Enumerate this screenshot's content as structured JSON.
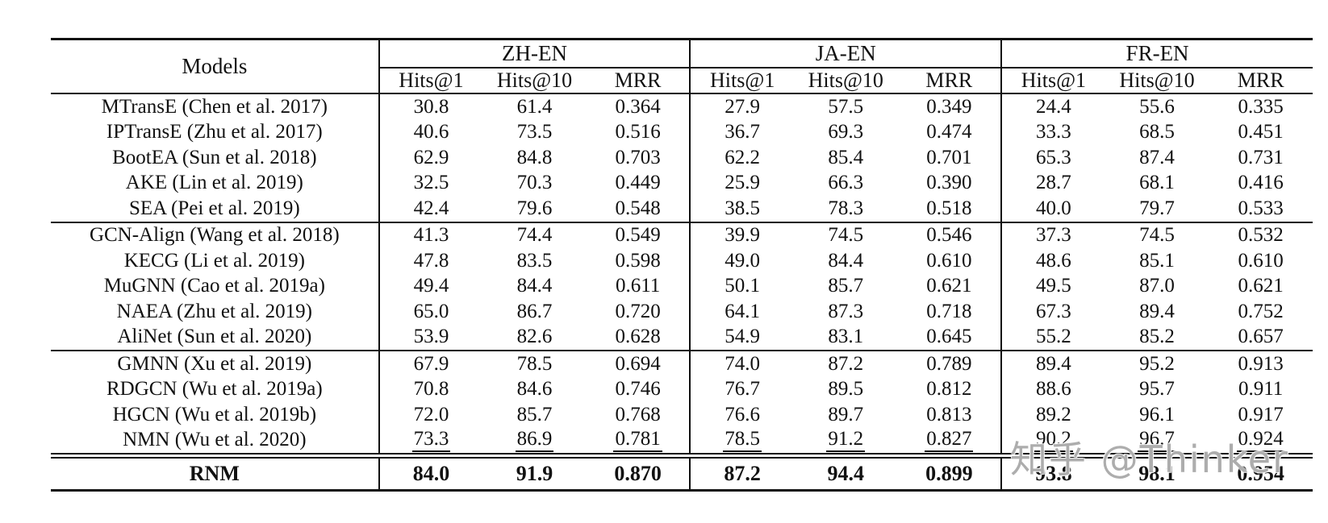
{
  "watermark": {
    "text": "知乎 @Thinker"
  },
  "table": {
    "models_header": "Models",
    "groups": [
      {
        "label": "ZH-EN"
      },
      {
        "label": "JA-EN"
      },
      {
        "label": "FR-EN"
      }
    ],
    "metric_labels": [
      "Hits@1",
      "Hits@10",
      "MRR"
    ],
    "blocks": [
      [
        {
          "model": "MTransE (Chen et al. 2017)",
          "values": [
            "30.8",
            "61.4",
            "0.364",
            "27.9",
            "57.5",
            "0.349",
            "24.4",
            "55.6",
            "0.335"
          ]
        },
        {
          "model": "IPTransE (Zhu et al. 2017)",
          "values": [
            "40.6",
            "73.5",
            "0.516",
            "36.7",
            "69.3",
            "0.474",
            "33.3",
            "68.5",
            "0.451"
          ]
        },
        {
          "model": "BootEA (Sun et al. 2018)",
          "values": [
            "62.9",
            "84.8",
            "0.703",
            "62.2",
            "85.4",
            "0.701",
            "65.3",
            "87.4",
            "0.731"
          ]
        },
        {
          "model": "AKE (Lin et al. 2019)",
          "values": [
            "32.5",
            "70.3",
            "0.449",
            "25.9",
            "66.3",
            "0.390",
            "28.7",
            "68.1",
            "0.416"
          ]
        },
        {
          "model": "SEA (Pei et al. 2019)",
          "values": [
            "42.4",
            "79.6",
            "0.548",
            "38.5",
            "78.3",
            "0.518",
            "40.0",
            "79.7",
            "0.533"
          ]
        }
      ],
      [
        {
          "model": "GCN-Align (Wang et al. 2018)",
          "values": [
            "41.3",
            "74.4",
            "0.549",
            "39.9",
            "74.5",
            "0.546",
            "37.3",
            "74.5",
            "0.532"
          ]
        },
        {
          "model": "KECG (Li et al. 2019)",
          "values": [
            "47.8",
            "83.5",
            "0.598",
            "49.0",
            "84.4",
            "0.610",
            "48.6",
            "85.1",
            "0.610"
          ]
        },
        {
          "model": "MuGNN (Cao et al. 2019a)",
          "values": [
            "49.4",
            "84.4",
            "0.611",
            "50.1",
            "85.7",
            "0.621",
            "49.5",
            "87.0",
            "0.621"
          ]
        },
        {
          "model": "NAEA (Zhu et al. 2019)",
          "values": [
            "65.0",
            "86.7",
            "0.720",
            "64.1",
            "87.3",
            "0.718",
            "67.3",
            "89.4",
            "0.752"
          ]
        },
        {
          "model": "AliNet (Sun et al. 2020)",
          "values": [
            "53.9",
            "82.6",
            "0.628",
            "54.9",
            "83.1",
            "0.645",
            "55.2",
            "85.2",
            "0.657"
          ]
        }
      ],
      [
        {
          "model": "GMNN (Xu et al. 2019)",
          "values": [
            "67.9",
            "78.5",
            "0.694",
            "74.0",
            "87.2",
            "0.789",
            "89.4",
            "95.2",
            "0.913"
          ]
        },
        {
          "model": "RDGCN (Wu et al. 2019a)",
          "values": [
            "70.8",
            "84.6",
            "0.746",
            "76.7",
            "89.5",
            "0.812",
            "88.6",
            "95.7",
            "0.911"
          ]
        },
        {
          "model": "HGCN (Wu et al. 2019b)",
          "values": [
            "72.0",
            "85.7",
            "0.768",
            "76.6",
            "89.7",
            "0.813",
            "89.2",
            "96.1",
            "0.917"
          ]
        },
        {
          "model": "NMN (Wu et al. 2020)",
          "values": [
            "73.3",
            "86.9",
            "0.781",
            "78.5",
            "91.2",
            "0.827",
            "90.2",
            "96.7",
            "0.924"
          ],
          "underline": true
        }
      ]
    ],
    "final_row": {
      "model": "RNM",
      "values": [
        "84.0",
        "91.9",
        "0.870",
        "87.2",
        "94.4",
        "0.899",
        "93.8",
        "98.1",
        "0.954"
      ]
    }
  }
}
